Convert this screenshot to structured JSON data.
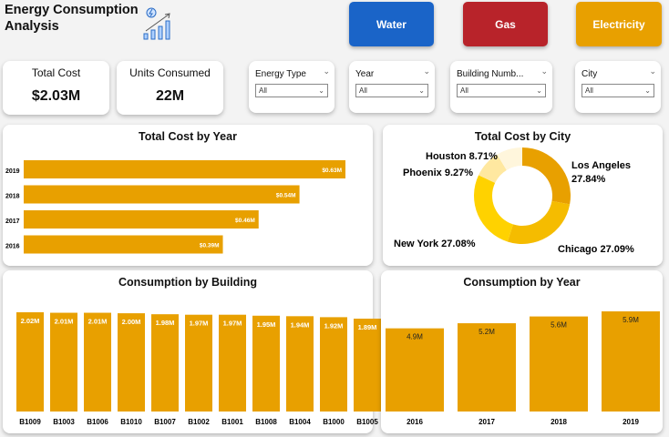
{
  "header": {
    "title_line1": "Energy Consumption",
    "title_line2": "Analysis",
    "icon": "energy-chart-icon"
  },
  "buttons": [
    {
      "label": "Water",
      "color": "#1a64c8"
    },
    {
      "label": "Gas",
      "color": "#b8232a"
    },
    {
      "label": "Electricity",
      "color": "#e8a000"
    }
  ],
  "kpis": [
    {
      "label": "Total Cost",
      "value": "$2.03M"
    },
    {
      "label": "Units Consumed",
      "value": "22M"
    }
  ],
  "slicers": [
    {
      "label": "Energy Type",
      "value": "All"
    },
    {
      "label": "Year",
      "value": "All"
    },
    {
      "label": "Building Numb...",
      "value": "All"
    },
    {
      "label": "City",
      "value": "All"
    }
  ],
  "chart_data": [
    {
      "type": "bar",
      "orientation": "horizontal",
      "title": "Total Cost by Year",
      "categories": [
        "2019",
        "2018",
        "2017",
        "2016"
      ],
      "values": [
        0.63,
        0.54,
        0.46,
        0.39
      ],
      "labels": [
        "$0.63M",
        "$0.54M",
        "$0.46M",
        "$0.39M"
      ],
      "color": "#e8a000"
    },
    {
      "type": "pie",
      "donut": true,
      "title": "Total Cost by City",
      "categories": [
        "Los Angeles",
        "Chicago",
        "New York",
        "Phoenix",
        "Houston"
      ],
      "values": [
        27.84,
        27.09,
        27.08,
        9.27,
        8.71
      ],
      "labels": [
        "27.84%",
        "27.09%",
        "27.08%",
        "9.27%",
        "8.71%"
      ],
      "colors": [
        "#e8a000",
        "#f5bc00",
        "#ffd200",
        "#ffe8a0",
        "#fff6dc"
      ]
    },
    {
      "type": "bar",
      "title": "Consumption by Building",
      "categories": [
        "B1009",
        "B1003",
        "B1006",
        "B1010",
        "B1007",
        "B1002",
        "B1001",
        "B1008",
        "B1004",
        "B1000",
        "B1005"
      ],
      "values": [
        2.02,
        2.01,
        2.01,
        2.0,
        1.98,
        1.97,
        1.97,
        1.95,
        1.94,
        1.92,
        1.89
      ],
      "labels": [
        "2.02M",
        "2.01M",
        "2.01M",
        "2.00M",
        "1.98M",
        "1.97M",
        "1.97M",
        "1.95M",
        "1.94M",
        "1.92M",
        "1.89M"
      ],
      "color": "#e8a000"
    },
    {
      "type": "bar",
      "title": "Consumption by Year",
      "categories": [
        "2016",
        "2017",
        "2018",
        "2019"
      ],
      "values": [
        4.9,
        5.2,
        5.6,
        5.9
      ],
      "labels": [
        "4.9M",
        "5.2M",
        "5.6M",
        "5.9M"
      ],
      "color": "#e8a000"
    }
  ]
}
